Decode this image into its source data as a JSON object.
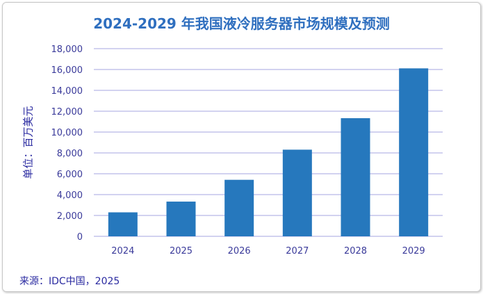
{
  "chart_data": {
    "type": "bar",
    "title": "2024-2029 年我国液冷服务器市场规模及预测",
    "ylabel": "单位：百万美元",
    "xlabel": "",
    "categories": [
      "2024",
      "2025",
      "2026",
      "2027",
      "2028",
      "2029"
    ],
    "values": [
      2300,
      3330,
      5420,
      8310,
      11330,
      16110
    ],
    "ylim": [
      0,
      18000
    ],
    "yticks": [
      "0",
      "2,000",
      "4,000",
      "6,000",
      "8,000",
      "10,000",
      "12,000",
      "14,000",
      "16,000",
      "18,000"
    ],
    "grid": true,
    "bar_color": "#2678bd",
    "grid_color": "#c4c4ec",
    "source": "来源：IDC中国，2025"
  }
}
